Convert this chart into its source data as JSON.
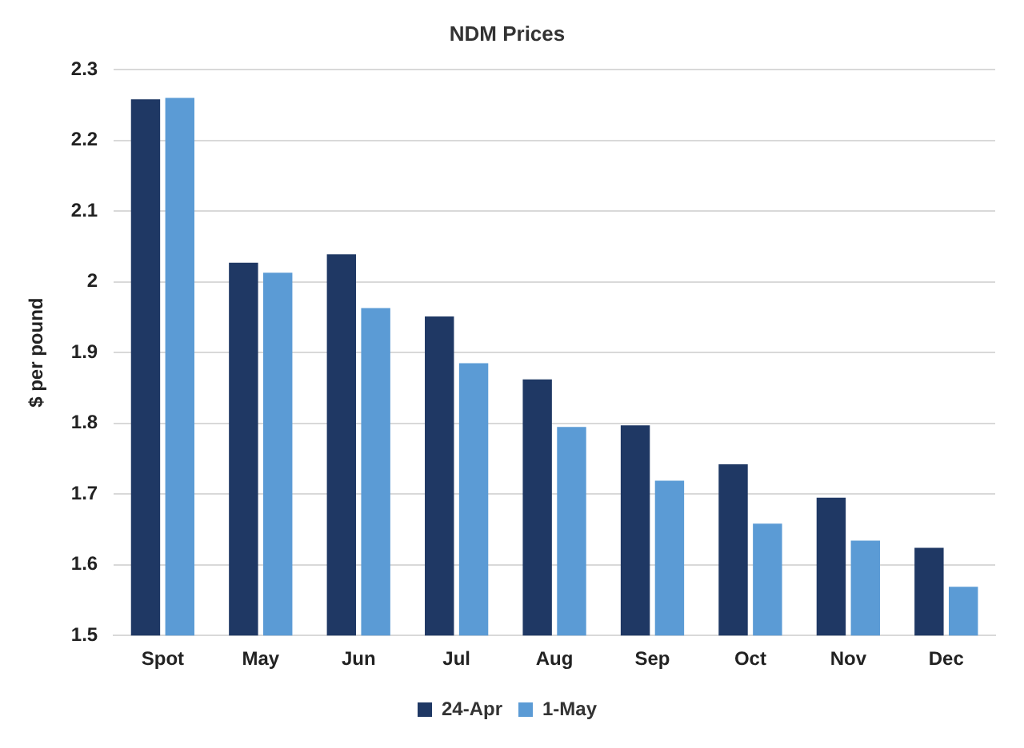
{
  "chart_data": {
    "type": "bar",
    "title": "NDM Prices",
    "ylabel": "$ per pound",
    "categories": [
      "Spot",
      "May",
      "Jun",
      "Jul",
      "Aug",
      "Sep",
      "Oct",
      "Nov",
      "Dec"
    ],
    "series": [
      {
        "name": "24-Apr",
        "color": "#1f3864",
        "values": [
          2.258,
          2.027,
          2.039,
          1.951,
          1.862,
          1.797,
          1.742,
          1.695,
          1.624
        ]
      },
      {
        "name": "1-May",
        "color": "#5b9bd5",
        "values": [
          2.26,
          2.013,
          1.963,
          1.885,
          1.795,
          1.719,
          1.658,
          1.634,
          1.569
        ]
      }
    ],
    "ylim": [
      1.5,
      2.3
    ],
    "yticks": [
      1.5,
      1.6,
      1.7,
      1.8,
      1.9,
      2,
      2.1,
      2.2,
      2.3
    ],
    "grid": "y",
    "legend": "bottom"
  }
}
